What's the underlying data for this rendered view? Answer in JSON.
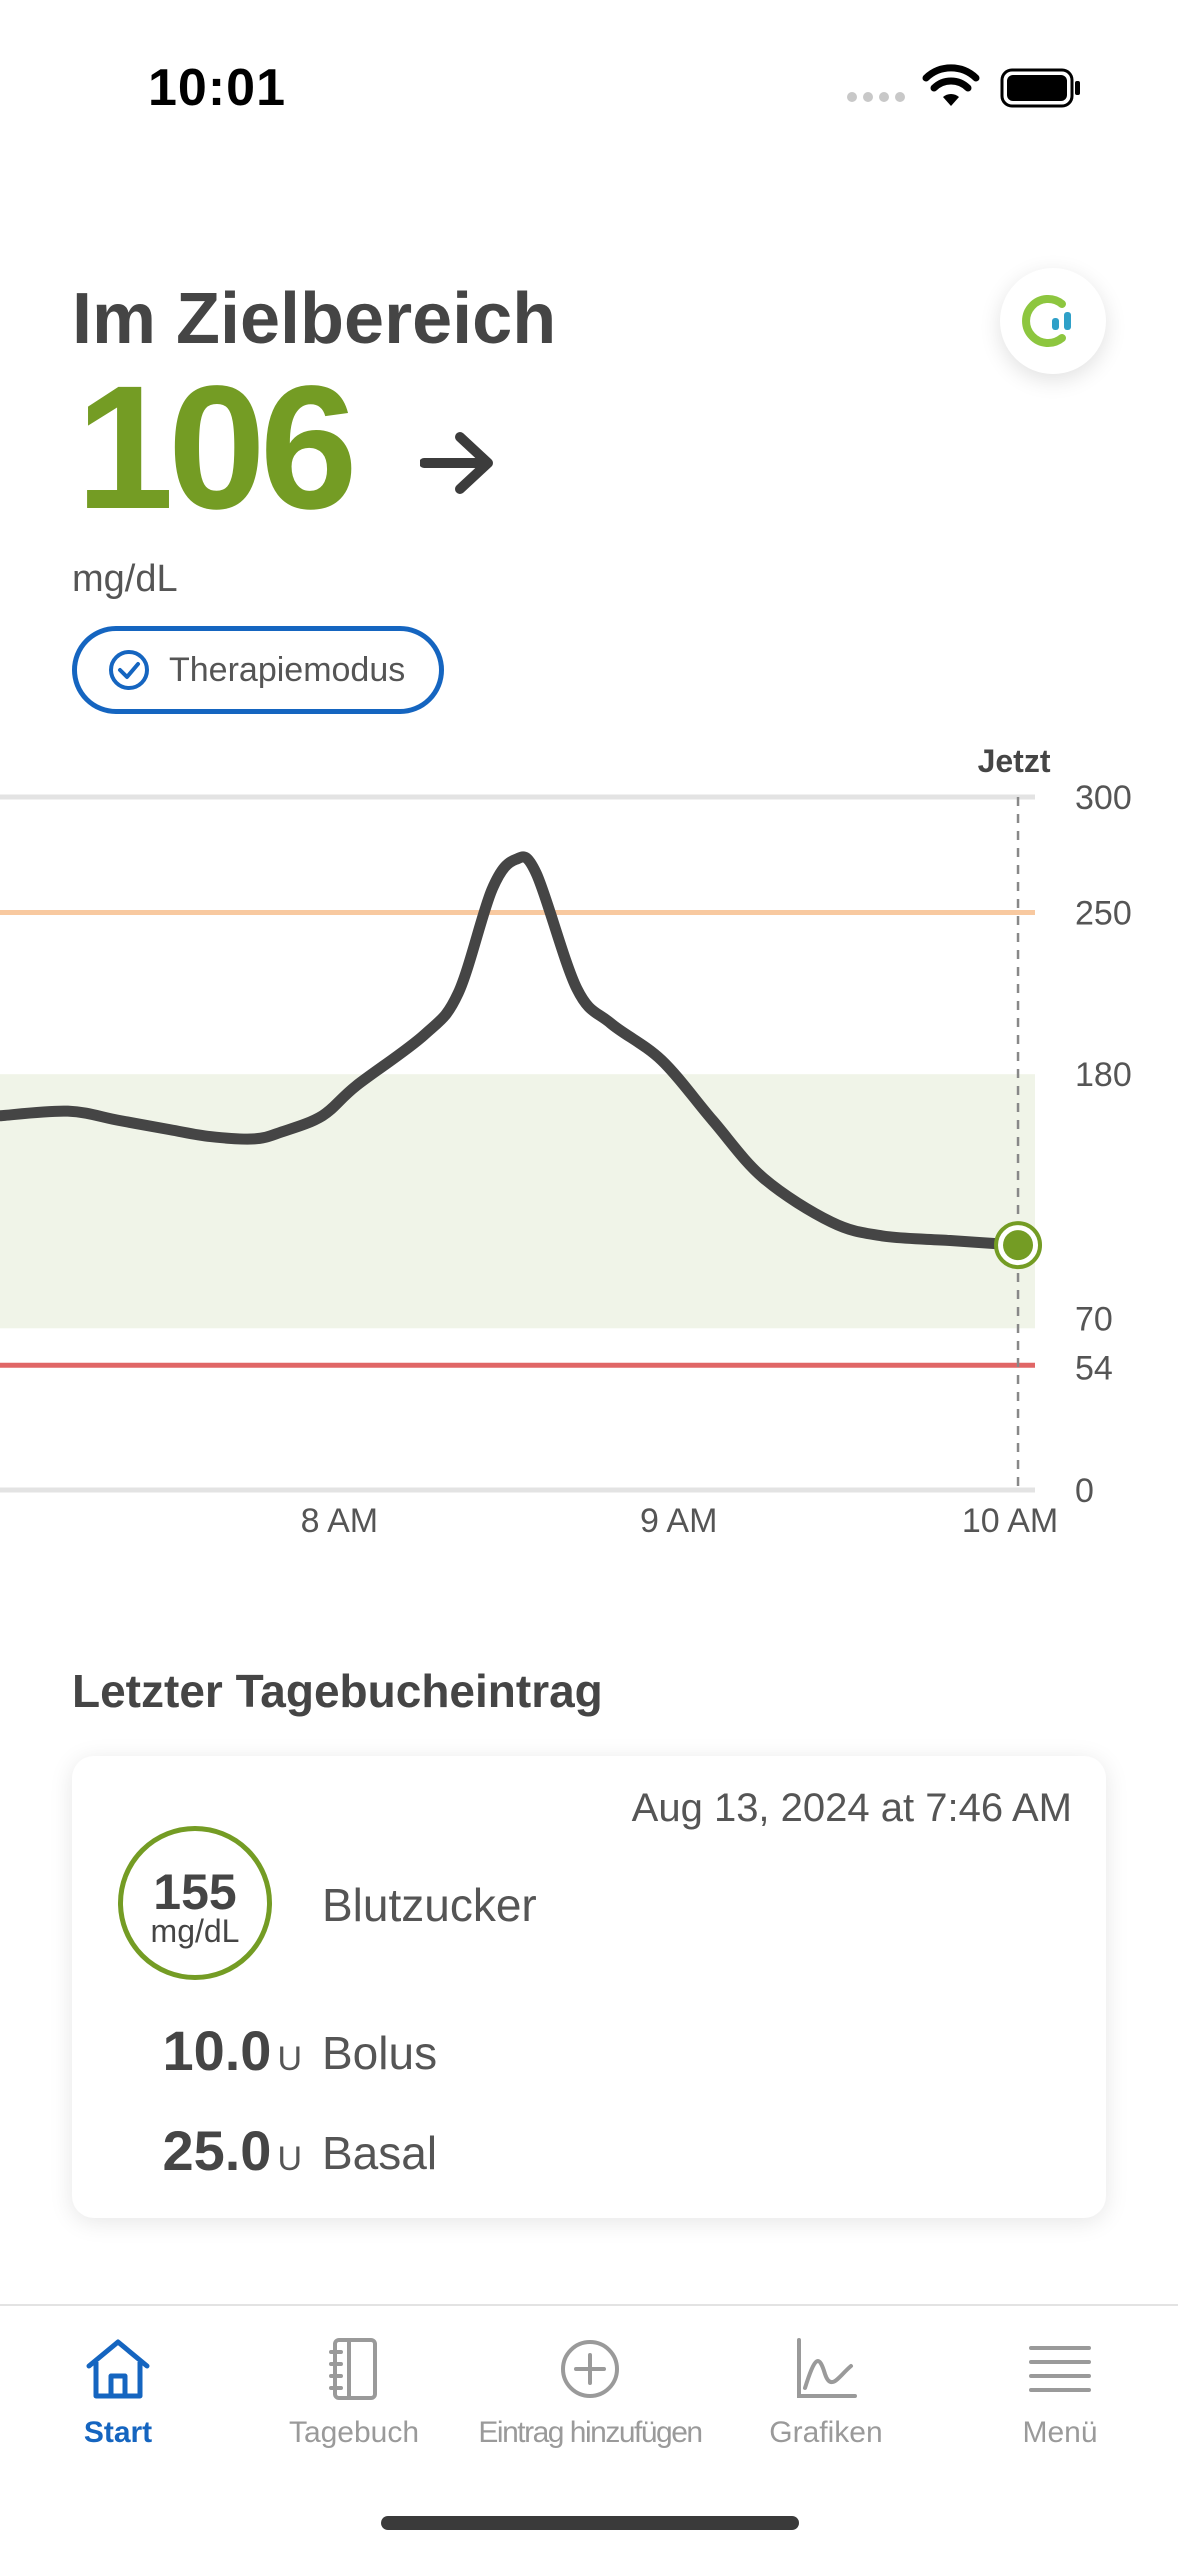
{
  "status_bar": {
    "time": "10:01"
  },
  "header": {
    "status_title": "Im Zielbereich",
    "glucose_value": "106",
    "unit": "mg/dL",
    "trend_icon": "arrow-right-icon",
    "badge_label": "Therapiemodus"
  },
  "colors": {
    "green": "#749c24",
    "blue": "#1565c0",
    "high": "#f8c9a0",
    "low": "#e06666",
    "range_fill": "#f0f4e8",
    "line": "#454545"
  },
  "chart_data": {
    "type": "line",
    "now_label": "Jetzt",
    "x_ticks": [
      "8 AM",
      "9 AM",
      "10 AM"
    ],
    "y_ticks": [
      300,
      250,
      180,
      70,
      54,
      0
    ],
    "ylim": [
      0,
      300
    ],
    "xlim": [
      7.0,
      10.05
    ],
    "target_range": [
      70,
      180
    ],
    "high_threshold": 250,
    "low_threshold": 54,
    "now_x": 10.0,
    "x": [
      7.0,
      7.2,
      7.35,
      7.5,
      7.62,
      7.75,
      7.83,
      7.95,
      8.05,
      8.25,
      8.35,
      8.45,
      8.52,
      8.58,
      8.7,
      8.8,
      8.95,
      9.1,
      9.25,
      9.45,
      9.6,
      9.8,
      10.0
    ],
    "y": [
      162,
      164,
      160,
      156,
      153,
      152,
      155,
      162,
      175,
      197,
      215,
      260,
      273,
      267,
      217,
      202,
      186,
      160,
      135,
      116,
      110,
      108,
      106
    ]
  },
  "diary": {
    "heading": "Letzter Tagebucheintrag",
    "date": "Aug 13, 2024 at 7:46 AM",
    "bg_value": "155",
    "bg_unit": "mg/dL",
    "bg_label": "Blutzucker",
    "bolus_value": "10.0",
    "bolus_unit": "U",
    "bolus_label": "Bolus",
    "basal_value": "25.0",
    "basal_unit": "U",
    "basal_label": "Basal"
  },
  "tabs": [
    {
      "label": "Start",
      "icon": "home-icon",
      "active": true
    },
    {
      "label": "Tagebuch",
      "icon": "notebook-icon",
      "active": false
    },
    {
      "label": "Eintrag hinzufügen",
      "icon": "plus-circle-icon",
      "active": false
    },
    {
      "label": "Grafiken",
      "icon": "chart-icon",
      "active": false
    },
    {
      "label": "Menü",
      "icon": "menu-icon",
      "active": false
    }
  ]
}
